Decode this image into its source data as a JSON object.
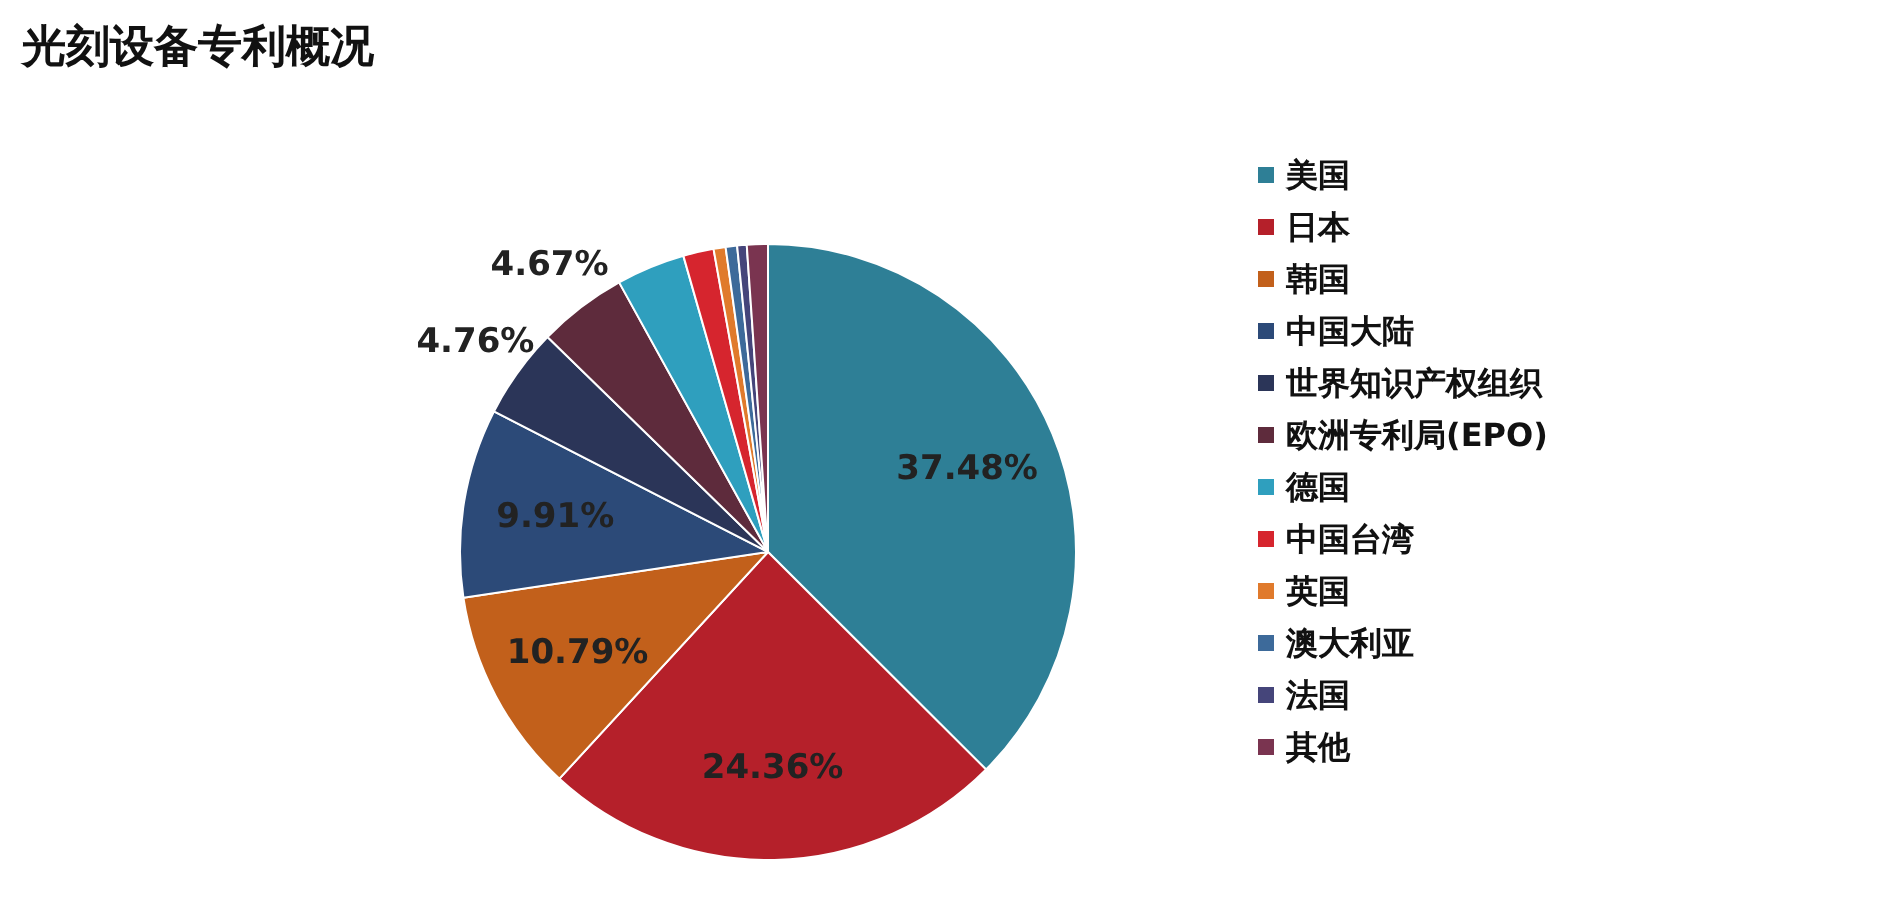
{
  "chart_data": {
    "type": "pie",
    "title": "光刻设备专利概况",
    "categories": [
      "美国",
      "日本",
      "韩国",
      "中国大陆",
      "世界知识产权组织",
      "欧洲专利局(EPO)",
      "德国",
      "中国台湾",
      "英国",
      "澳大利亚",
      "法国",
      "其他"
    ],
    "values": [
      37.48,
      24.36,
      10.79,
      9.91,
      4.76,
      4.67,
      3.6,
      1.6,
      0.63,
      0.6,
      0.5,
      1.1
    ],
    "colors": [
      "#2e7f96",
      "#b5202a",
      "#c2601b",
      "#2c4a78",
      "#2b3558",
      "#5e2b3c",
      "#2f9fbe",
      "#d6252e",
      "#e07a2c",
      "#3d6a9a",
      "#45457a",
      "#7a3450"
    ],
    "value_labels": [
      "37.48%",
      "24.36%",
      "10.79%",
      "9.91%",
      "4.76%",
      "4.67%",
      null,
      null,
      null,
      null,
      null,
      null
    ],
    "legend": "right"
  }
}
